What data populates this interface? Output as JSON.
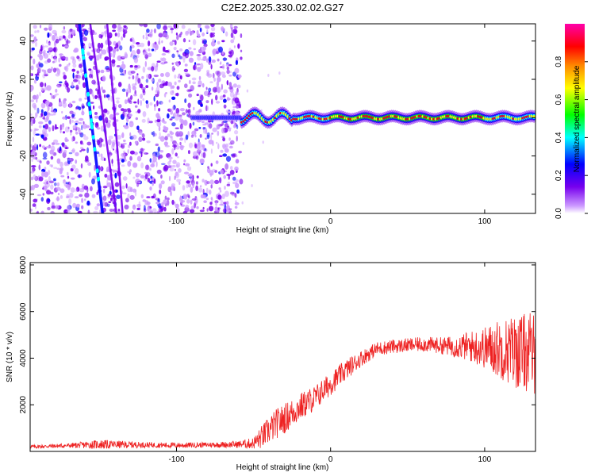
{
  "figure": {
    "title": "C2E2.2025.330.02.02.G27"
  },
  "chart_data": [
    {
      "type": "heatmap",
      "xlabel": "Height of straight line (km)",
      "ylabel": "Frequency (Hz)",
      "xlim": [
        -195,
        133
      ],
      "ylim": [
        -50,
        49
      ],
      "xticks": [
        -100,
        0,
        100
      ],
      "yticks": [
        -40,
        -20,
        0,
        20,
        40
      ],
      "colorbar": {
        "label": "Normalized spectral amplitude",
        "range": [
          0.0,
          1.0
        ],
        "ticks": [
          0.0,
          0.2,
          0.4,
          0.6,
          0.8
        ],
        "colormap": [
          "#cc99ff",
          "#7700ee",
          "#0000ff",
          "#00ffff",
          "#00ff00",
          "#ffff00",
          "#ff8800",
          "#ff0000",
          "#ff00aa"
        ]
      },
      "features": {
        "noise_region_x": [
          -195,
          -58
        ],
        "signal_line_freq_hz": 0,
        "signal_line_x": [
          -90,
          133
        ],
        "strong_signal_x": [
          -58,
          133
        ],
        "diagonal_streaks": [
          {
            "x_top": -163,
            "x_bottom": -148
          },
          {
            "x_top": -156,
            "x_bottom": -139
          },
          {
            "x_top": -145,
            "x_bottom": -135
          }
        ]
      }
    },
    {
      "type": "line",
      "xlabel": "Height of straight line (km)",
      "ylabel": "SNR (10 * v/v)",
      "xlim": [
        -195,
        133
      ],
      "ylim": [
        0,
        8100
      ],
      "xticks": [
        -100,
        0,
        100
      ],
      "yticks": [
        2000,
        4000,
        6000,
        8000
      ],
      "color": "#ee2222",
      "series": [
        {
          "name": "SNR",
          "x": [
            -195,
            -170,
            -150,
            -120,
            -100,
            -80,
            -60,
            -50,
            -45,
            -40,
            -35,
            -30,
            -20,
            -10,
            0,
            10,
            20,
            30,
            40,
            50,
            60,
            70,
            80,
            90,
            100,
            110,
            120,
            133
          ],
          "values": [
            200,
            250,
            300,
            280,
            260,
            280,
            300,
            350,
            600,
            900,
            1200,
            1400,
            1900,
            2300,
            2900,
            3500,
            4000,
            4400,
            4500,
            4550,
            4600,
            4550,
            4500,
            4500,
            4450,
            4400,
            4300,
            4200
          ],
          "noise": [
            80,
            100,
            200,
            120,
            120,
            110,
            150,
            250,
            500,
            600,
            650,
            650,
            600,
            550,
            500,
            450,
            350,
            300,
            300,
            300,
            320,
            350,
            450,
            650,
            900,
            1300,
            1600,
            1800
          ]
        }
      ]
    }
  ]
}
